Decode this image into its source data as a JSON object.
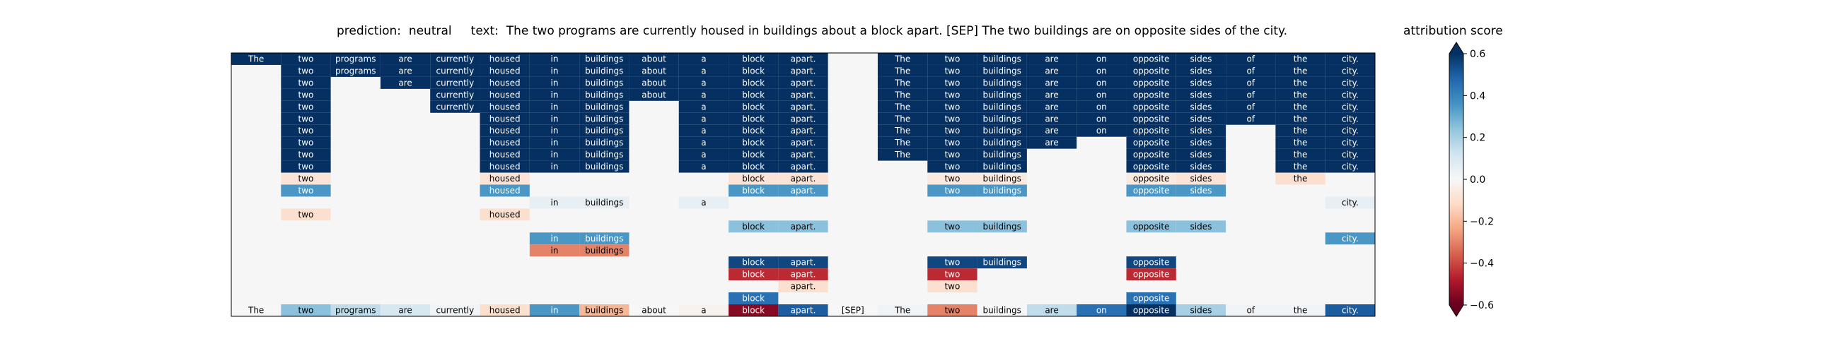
{
  "header": {
    "prediction_label": "prediction:",
    "prediction": "neutral",
    "text_label": "text:",
    "text": "The two programs are currently housed in buildings about a block apart. [SEP] The two buildings are on opposite sides of the city."
  },
  "colorbar": {
    "title": "attribution score",
    "ticks": [
      0.6,
      0.4,
      0.2,
      0.0,
      -0.2,
      -0.4,
      -0.6
    ],
    "tick_labels": [
      "0.6",
      "0.4",
      "0.2",
      "0.0",
      "−0.2",
      "−0.4",
      "−0.6"
    ]
  },
  "chart_data": {
    "type": "heatmap",
    "title": "prediction:  neutral     text:  The two programs are currently housed in buildings about a block apart. [SEP] The two buildings are on opposite sides of the city.",
    "tokens": [
      "The",
      "two",
      "programs",
      "are",
      "currently",
      "housed",
      "in",
      "buildings",
      "about",
      "a",
      "block",
      "apart.",
      "[SEP]",
      "The",
      "two",
      "buildings",
      "are",
      "on",
      "opposite",
      "sides",
      "of",
      "the",
      "city."
    ],
    "vmin": -0.6,
    "vmax": 0.6,
    "colormap": "RdBu",
    "background": "#f5f6f5",
    "rows": [
      {
        "cols": [
          0,
          1,
          2,
          3,
          4,
          5,
          6,
          7,
          8,
          9,
          10,
          11,
          13,
          14,
          15,
          16,
          17,
          18,
          19,
          20,
          21,
          22
        ],
        "values": [
          0.6,
          0.6,
          0.6,
          0.6,
          0.6,
          0.6,
          0.6,
          0.6,
          0.6,
          0.6,
          0.6,
          0.6,
          0.6,
          0.6,
          0.6,
          0.6,
          0.6,
          0.6,
          0.6,
          0.6,
          0.6,
          0.6
        ]
      },
      {
        "cols": [
          1,
          2,
          3,
          4,
          5,
          6,
          7,
          8,
          9,
          10,
          11,
          13,
          14,
          15,
          16,
          17,
          18,
          19,
          20,
          21,
          22
        ],
        "values": [
          0.6,
          0.6,
          0.6,
          0.6,
          0.6,
          0.6,
          0.6,
          0.6,
          0.6,
          0.6,
          0.6,
          0.6,
          0.6,
          0.6,
          0.6,
          0.6,
          0.6,
          0.6,
          0.6,
          0.6,
          0.6
        ]
      },
      {
        "cols": [
          1,
          3,
          4,
          5,
          6,
          7,
          8,
          9,
          10,
          11,
          13,
          14,
          15,
          16,
          17,
          18,
          19,
          20,
          21,
          22
        ],
        "values": [
          0.6,
          0.6,
          0.6,
          0.6,
          0.6,
          0.6,
          0.6,
          0.6,
          0.6,
          0.6,
          0.6,
          0.6,
          0.6,
          0.6,
          0.6,
          0.6,
          0.6,
          0.6,
          0.6,
          0.6
        ]
      },
      {
        "cols": [
          1,
          4,
          5,
          6,
          7,
          8,
          9,
          10,
          11,
          13,
          14,
          15,
          16,
          17,
          18,
          19,
          20,
          21,
          22
        ],
        "values": [
          0.6,
          0.6,
          0.6,
          0.6,
          0.6,
          0.6,
          0.6,
          0.6,
          0.6,
          0.6,
          0.6,
          0.6,
          0.6,
          0.6,
          0.6,
          0.6,
          0.6,
          0.6,
          0.6
        ]
      },
      {
        "cols": [
          1,
          4,
          5,
          6,
          7,
          9,
          10,
          11,
          13,
          14,
          15,
          16,
          17,
          18,
          19,
          20,
          21,
          22
        ],
        "values": [
          0.6,
          0.6,
          0.6,
          0.6,
          0.6,
          0.6,
          0.6,
          0.6,
          0.6,
          0.6,
          0.6,
          0.6,
          0.6,
          0.6,
          0.6,
          0.6,
          0.6,
          0.6
        ]
      },
      {
        "cols": [
          1,
          5,
          6,
          7,
          9,
          10,
          11,
          13,
          14,
          15,
          16,
          17,
          18,
          19,
          20,
          21,
          22
        ],
        "values": [
          0.6,
          0.6,
          0.6,
          0.6,
          0.6,
          0.6,
          0.6,
          0.6,
          0.6,
          0.6,
          0.6,
          0.6,
          0.6,
          0.6,
          0.6,
          0.6,
          0.6
        ]
      },
      {
        "cols": [
          1,
          5,
          6,
          7,
          9,
          10,
          11,
          13,
          14,
          15,
          16,
          17,
          18,
          19,
          21,
          22
        ],
        "values": [
          0.6,
          0.6,
          0.6,
          0.6,
          0.6,
          0.6,
          0.6,
          0.6,
          0.6,
          0.6,
          0.6,
          0.6,
          0.6,
          0.6,
          0.6,
          0.6
        ]
      },
      {
        "cols": [
          1,
          5,
          6,
          7,
          9,
          10,
          11,
          13,
          14,
          15,
          16,
          18,
          19,
          21,
          22
        ],
        "values": [
          0.6,
          0.6,
          0.6,
          0.6,
          0.6,
          0.6,
          0.6,
          0.6,
          0.6,
          0.6,
          0.6,
          0.6,
          0.6,
          0.6,
          0.6
        ]
      },
      {
        "cols": [
          1,
          5,
          6,
          7,
          9,
          10,
          11,
          13,
          14,
          15,
          18,
          19,
          21,
          22
        ],
        "values": [
          0.6,
          0.6,
          0.6,
          0.6,
          0.6,
          0.6,
          0.6,
          0.6,
          0.6,
          0.6,
          0.6,
          0.6,
          0.6,
          0.6
        ]
      },
      {
        "cols": [
          1,
          5,
          6,
          7,
          9,
          10,
          11,
          14,
          15,
          18,
          19,
          21,
          22
        ],
        "values": [
          0.6,
          0.6,
          0.6,
          0.6,
          0.6,
          0.6,
          0.6,
          0.6,
          0.6,
          0.6,
          0.6,
          0.6,
          0.6
        ]
      },
      {
        "cols": [
          1,
          5,
          10,
          11,
          14,
          15,
          18,
          19,
          21
        ],
        "values": [
          -0.08,
          -0.08,
          -0.08,
          -0.08,
          -0.06,
          -0.06,
          -0.06,
          -0.08,
          -0.1
        ]
      },
      {
        "cols": [
          1,
          5,
          10,
          11,
          14,
          15,
          18,
          19
        ],
        "values": [
          0.35,
          0.35,
          0.35,
          0.35,
          0.35,
          0.35,
          0.35,
          0.35
        ]
      },
      {
        "cols": [
          6,
          7,
          9,
          22
        ],
        "values": [
          0.05,
          0.05,
          0.05,
          0.05
        ]
      },
      {
        "cols": [
          1,
          5
        ],
        "values": [
          -0.1,
          -0.1
        ]
      },
      {
        "cols": [
          10,
          11,
          14,
          15,
          18,
          19
        ],
        "values": [
          0.25,
          0.25,
          0.25,
          0.25,
          0.25,
          0.25
        ]
      },
      {
        "cols": [
          6,
          7,
          22
        ],
        "values": [
          0.35,
          0.35,
          0.35
        ]
      },
      {
        "cols": [
          6,
          7
        ],
        "values": [
          -0.3,
          -0.3
        ]
      },
      {
        "cols": [
          10,
          11,
          14,
          15,
          18
        ],
        "values": [
          0.55,
          0.55,
          0.55,
          0.55,
          0.55
        ]
      },
      {
        "cols": [
          10,
          11,
          14,
          18
        ],
        "values": [
          -0.45,
          -0.45,
          -0.45,
          -0.45
        ]
      },
      {
        "cols": [
          11,
          14
        ],
        "values": [
          -0.1,
          -0.1
        ]
      },
      {
        "cols": [
          10,
          18
        ],
        "values": [
          0.45,
          0.45
        ]
      },
      {
        "cols": [
          0,
          1,
          2,
          3,
          4,
          5,
          6,
          7,
          8,
          9,
          10,
          11,
          12,
          13,
          14,
          15,
          16,
          17,
          18,
          19,
          20,
          21,
          22
        ],
        "values": [
          0.0,
          0.25,
          0.15,
          0.1,
          0.02,
          -0.1,
          0.35,
          -0.2,
          0.0,
          -0.02,
          -0.55,
          0.5,
          0.0,
          0.02,
          -0.3,
          0.0,
          0.15,
          0.45,
          0.95,
          0.2,
          0.02,
          0.02,
          0.5
        ]
      }
    ]
  }
}
